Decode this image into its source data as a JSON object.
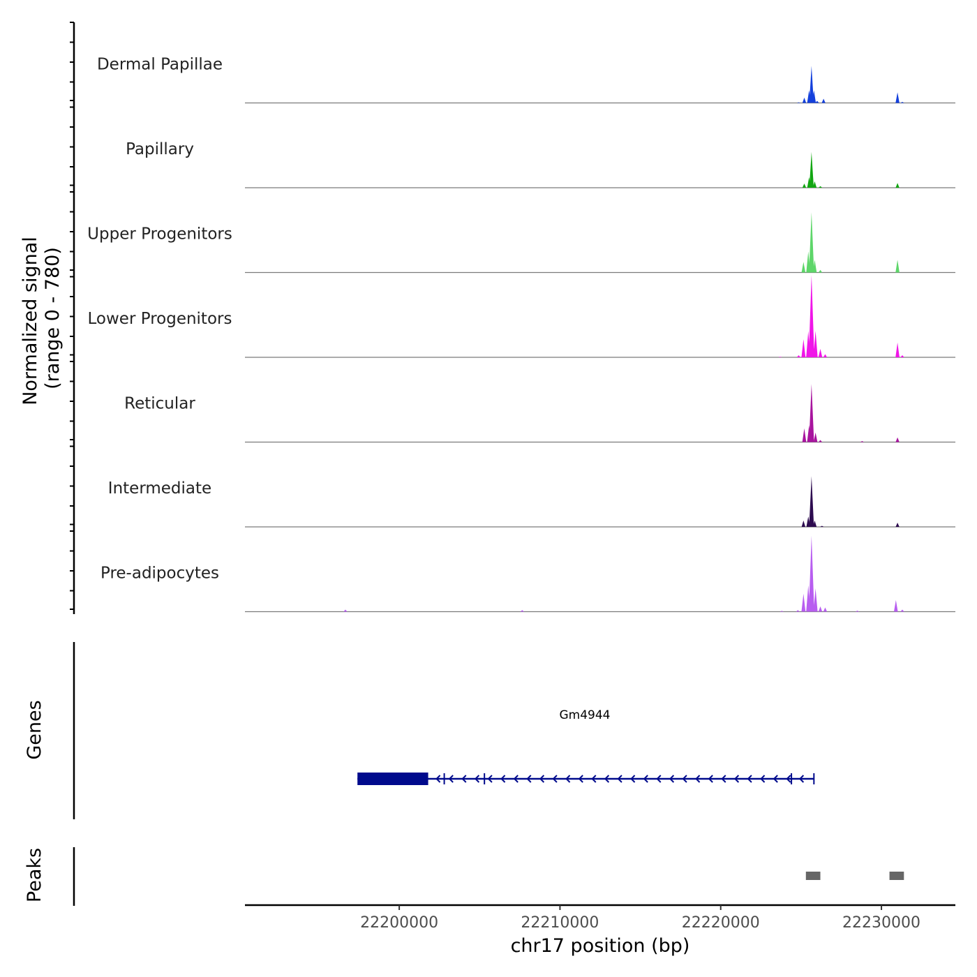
{
  "chart_data": {
    "type": "area",
    "title": "",
    "ylabel": {
      "line1": "Normalized signal",
      "line2": "(range 0 - 780)"
    },
    "y_range": [
      0,
      780
    ],
    "xlabel": "chr17 position (bp)",
    "xlim": [
      22190400,
      22234600
    ],
    "x_ticks": [
      {
        "value": 22200000,
        "label": "22200000"
      },
      {
        "value": 22210000,
        "label": "22210000"
      },
      {
        "value": 22220000,
        "label": "22220000"
      },
      {
        "value": 22230000,
        "label": "22230000"
      }
    ],
    "tracks": [
      {
        "name": "Dermal Papillae",
        "color": "#1440dc",
        "peaks": [
          [
            22224850,
            6
          ],
          [
            22225200,
            50
          ],
          [
            22225500,
            120
          ],
          [
            22225650,
            350
          ],
          [
            22225800,
            120
          ],
          [
            22226000,
            20
          ],
          [
            22226400,
            40
          ],
          [
            22231000,
            100
          ],
          [
            22231300,
            10
          ]
        ]
      },
      {
        "name": "Papillary",
        "color": "#12a612",
        "peaks": [
          [
            22225200,
            40
          ],
          [
            22225500,
            100
          ],
          [
            22225650,
            340
          ],
          [
            22225850,
            60
          ],
          [
            22226200,
            15
          ],
          [
            22231000,
            45
          ]
        ]
      },
      {
        "name": "Upper Progenitors",
        "color": "#5ed66a",
        "peaks": [
          [
            22225150,
            100
          ],
          [
            22225450,
            200
          ],
          [
            22225650,
            570
          ],
          [
            22225850,
            120
          ],
          [
            22226200,
            25
          ],
          [
            22231000,
            120
          ]
        ]
      },
      {
        "name": "Lower Progenitors",
        "color": "#f016e8",
        "peaks": [
          [
            22223700,
            5
          ],
          [
            22224850,
            20
          ],
          [
            22225150,
            170
          ],
          [
            22225450,
            250
          ],
          [
            22225650,
            780
          ],
          [
            22225900,
            250
          ],
          [
            22226200,
            80
          ],
          [
            22226500,
            30
          ],
          [
            22231000,
            140
          ],
          [
            22231300,
            20
          ]
        ]
      },
      {
        "name": "Reticular",
        "color": "#a8149e",
        "peaks": [
          [
            22225200,
            130
          ],
          [
            22225500,
            160
          ],
          [
            22225650,
            550
          ],
          [
            22225900,
            90
          ],
          [
            22226200,
            20
          ],
          [
            22228800,
            10
          ],
          [
            22231000,
            45
          ]
        ]
      },
      {
        "name": "Intermediate",
        "color": "#2e0c50",
        "peaks": [
          [
            22225150,
            60
          ],
          [
            22225450,
            100
          ],
          [
            22225650,
            480
          ],
          [
            22225850,
            60
          ],
          [
            22226300,
            10
          ],
          [
            22231000,
            40
          ]
        ]
      },
      {
        "name": "Pre-adipocytes",
        "color": "#b85ef0",
        "peaks": [
          [
            22196650,
            20
          ],
          [
            22207650,
            15
          ],
          [
            22223800,
            8
          ],
          [
            22224800,
            15
          ],
          [
            22225150,
            170
          ],
          [
            22225450,
            250
          ],
          [
            22225650,
            720
          ],
          [
            22225900,
            220
          ],
          [
            22226200,
            50
          ],
          [
            22226500,
            40
          ],
          [
            22228500,
            10
          ],
          [
            22230900,
            110
          ],
          [
            22231300,
            20
          ]
        ]
      }
    ],
    "genes_track": {
      "label": "Genes",
      "gene_name": "Gm4944",
      "strand": "-",
      "start": 22197400,
      "end": 22225800,
      "thick_end": 22201800,
      "exons": [
        22202800,
        22205300,
        22224400
      ],
      "color": "#000a8c"
    },
    "peaks_track": {
      "label": "Peaks",
      "color": "#666666",
      "regions": [
        [
          22225300,
          22226200
        ],
        [
          22230500,
          22231400
        ]
      ]
    }
  }
}
